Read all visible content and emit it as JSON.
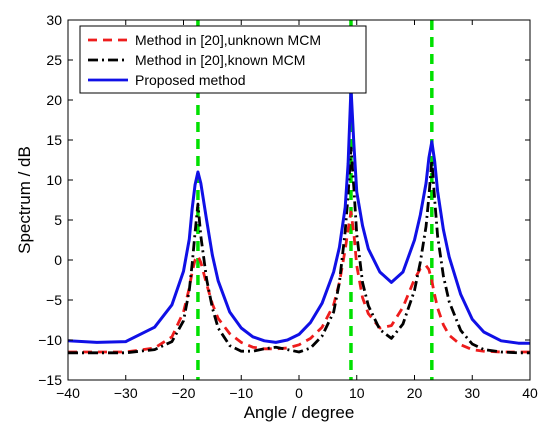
{
  "chart_data": {
    "type": "line",
    "title": "",
    "xlabel": "Angle / degree",
    "ylabel": "Spectrum / dB",
    "xlim": [
      -40,
      40
    ],
    "ylim": [
      -15,
      30
    ],
    "xticks": [
      -40,
      -30,
      -20,
      -10,
      0,
      10,
      20,
      30,
      40
    ],
    "yticks": [
      -15,
      -10,
      -5,
      0,
      5,
      10,
      15,
      20,
      25,
      30
    ],
    "grid": false,
    "legend_position": "top-left",
    "true_angles": [
      -17.5,
      9,
      23
    ],
    "true_angle_color": "#00e000",
    "series": [
      {
        "name": "Method in [20],unknown MCM",
        "color": "#ee1c1c",
        "style": "dashed",
        "x": [
          -40,
          -35,
          -30,
          -25,
          -22,
          -20,
          -19,
          -18.5,
          -18,
          -17.5,
          -17,
          -16,
          -15,
          -14,
          -12,
          -10,
          -8,
          -6,
          -4,
          -2,
          0,
          2,
          4,
          6,
          7,
          8,
          8.5,
          9,
          9.5,
          10,
          11,
          12,
          14,
          16,
          18,
          20,
          21,
          22,
          22.5,
          23,
          23.5,
          24,
          25,
          26,
          28,
          30,
          32,
          35,
          38,
          40
        ],
        "y": [
          -11.5,
          -11.5,
          -11.5,
          -11.0,
          -9.6,
          -6.5,
          -3.5,
          -1.5,
          0.0,
          0.5,
          -0.3,
          -3.0,
          -5.5,
          -7.3,
          -9.2,
          -10.3,
          -10.9,
          -11.1,
          -11.1,
          -11.0,
          -10.6,
          -9.8,
          -8.4,
          -5.6,
          -2.8,
          1.3,
          3.8,
          6.0,
          3.3,
          -0.7,
          -4.7,
          -6.7,
          -8.5,
          -8.2,
          -5.9,
          -2.4,
          -1.1,
          -0.7,
          -1.2,
          -2.6,
          -4.4,
          -6.0,
          -8.1,
          -9.4,
          -10.6,
          -11.2,
          -11.4,
          -11.5,
          -11.5,
          -11.5
        ]
      },
      {
        "name": "Method in [20],known MCM",
        "color": "#000000",
        "style": "dashdot",
        "x": [
          -40,
          -35,
          -30,
          -25,
          -22,
          -20,
          -19,
          -18.5,
          -18,
          -17.5,
          -17,
          -16,
          -15,
          -14,
          -12,
          -10,
          -8,
          -6,
          -4,
          -2,
          0,
          2,
          4,
          6,
          7,
          8,
          8.5,
          9,
          9.5,
          10,
          11,
          12,
          14,
          16,
          18,
          20,
          21,
          22,
          22.5,
          23,
          23.5,
          24,
          25,
          26,
          28,
          30,
          32,
          35,
          38,
          40
        ],
        "y": [
          -11.6,
          -11.6,
          -11.6,
          -11.2,
          -10.2,
          -7.6,
          -3.8,
          -0.5,
          3.4,
          7.0,
          3.0,
          -2.4,
          -6.0,
          -8.5,
          -10.7,
          -11.4,
          -11.4,
          -11.1,
          -10.9,
          -11.2,
          -11.5,
          -11.0,
          -9.5,
          -6.5,
          -2.8,
          3.6,
          8.1,
          14.0,
          9.0,
          3.2,
          -2.8,
          -5.7,
          -8.7,
          -9.8,
          -8.0,
          -3.8,
          -0.3,
          4.2,
          8.0,
          12.5,
          7.5,
          3.0,
          -2.0,
          -5.2,
          -8.8,
          -10.5,
          -11.2,
          -11.5,
          -11.6,
          -11.6
        ]
      },
      {
        "name": "Proposed method",
        "color": "#1010e6",
        "style": "solid",
        "x": [
          -40,
          -35,
          -30,
          -25,
          -22,
          -20,
          -19,
          -18.5,
          -18,
          -17.5,
          -17,
          -16,
          -15,
          -14,
          -12,
          -10,
          -8,
          -6,
          -4,
          -2,
          0,
          2,
          4,
          6,
          7,
          8,
          8.5,
          9,
          9.5,
          10,
          11,
          12,
          14,
          16,
          18,
          20,
          21,
          22,
          22.5,
          23,
          23.5,
          24,
          25,
          26,
          28,
          30,
          32,
          35,
          38,
          40
        ],
        "y": [
          -10.1,
          -10.3,
          -10.2,
          -8.4,
          -5.6,
          -1.4,
          2.6,
          6.4,
          9.4,
          11.0,
          9.6,
          5.0,
          0.6,
          -2.6,
          -6.5,
          -8.5,
          -9.6,
          -10.1,
          -10.3,
          -10.0,
          -9.3,
          -7.8,
          -5.4,
          -1.5,
          1.6,
          6.6,
          12.0,
          21.5,
          14.5,
          8.5,
          4.3,
          1.4,
          -1.5,
          -2.8,
          -1.5,
          2.5,
          5.6,
          9.6,
          12.8,
          14.8,
          12.3,
          8.6,
          3.8,
          0.4,
          -4.3,
          -7.4,
          -9.0,
          -10.1,
          -10.4,
          -10.4
        ]
      }
    ]
  }
}
